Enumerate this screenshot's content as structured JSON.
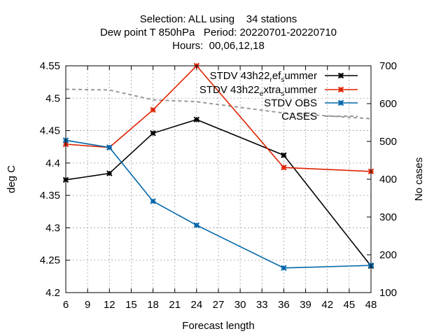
{
  "chart_data": {
    "type": "line",
    "title_lines": [
      "Selection: ALL using    34 stations",
      "Dew point T 850hPa   Period: 20220701-20220710",
      "Hours:  00,06,12,18"
    ],
    "xlabel": "Forecast length",
    "ylabel": "deg C",
    "y2label": "No cases",
    "xlim": [
      6,
      48
    ],
    "ylim": [
      4.2,
      4.55
    ],
    "y2lim": [
      100,
      700
    ],
    "x_ticks": [
      6,
      9,
      12,
      15,
      18,
      21,
      24,
      27,
      30,
      33,
      36,
      39,
      42,
      45,
      48
    ],
    "y_ticks": [
      "4.2",
      "4.25",
      "4.3",
      "4.35",
      "4.4",
      "4.45",
      "4.5",
      "4.55"
    ],
    "y2_ticks": [
      "100",
      "200",
      "300",
      "400",
      "500",
      "600",
      "700"
    ],
    "grid": true,
    "legend_position": "top-right",
    "series": [
      {
        "name": "STDV 43h22_ref_summer",
        "legend_parts": [
          [
            "STDV 43h22",
            "n"
          ],
          [
            "r",
            "sub"
          ],
          [
            "ef",
            "n"
          ],
          [
            "s",
            "sub"
          ],
          [
            "ummer",
            "n"
          ]
        ],
        "color": "#000000",
        "marker": "x",
        "axis": "y",
        "x": [
          6,
          12,
          18,
          24,
          36,
          48
        ],
        "values": [
          4.374,
          4.384,
          4.446,
          4.467,
          4.412,
          4.241
        ]
      },
      {
        "name": "STDV 43h22_extra_summer",
        "legend_parts": [
          [
            "STDV 43h22",
            "n"
          ],
          [
            "e",
            "sub"
          ],
          [
            "xtra",
            "n"
          ],
          [
            "s",
            "sub"
          ],
          [
            "ummer",
            "n"
          ]
        ],
        "color": "#dd2200",
        "marker": "x",
        "axis": "y",
        "x": [
          6,
          12,
          18,
          24,
          36,
          48
        ],
        "values": [
          4.429,
          4.424,
          4.482,
          4.55,
          4.393,
          4.387
        ]
      },
      {
        "name": "STDV OBS",
        "legend_parts": [
          [
            "STDV OBS",
            "n"
          ]
        ],
        "color": "#0066aa",
        "marker": "x",
        "axis": "y",
        "x": [
          6,
          12,
          18,
          24,
          36,
          48
        ],
        "values": [
          4.435,
          4.424,
          4.341,
          4.304,
          4.238,
          4.242
        ]
      },
      {
        "name": "CASES",
        "legend_parts": [
          [
            "CASES",
            "n"
          ]
        ],
        "color": "#999999",
        "dashed": true,
        "axis": "y2",
        "x": [
          6,
          12,
          18,
          24,
          36,
          48
        ],
        "values": [
          638,
          636,
          610,
          605,
          575,
          560
        ]
      }
    ]
  }
}
